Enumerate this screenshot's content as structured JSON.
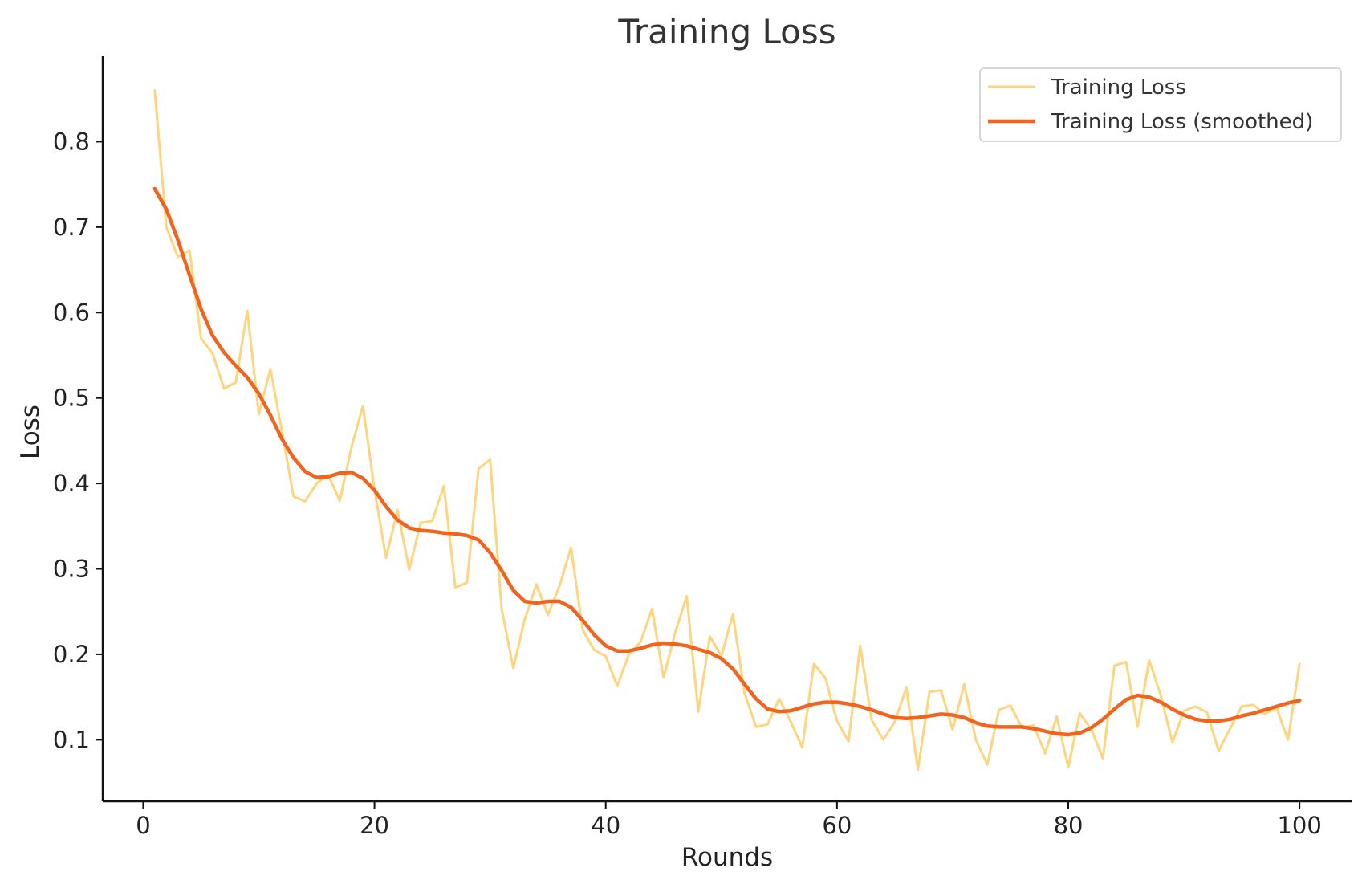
{
  "chart_data": {
    "type": "line",
    "title": "Training Loss",
    "xlabel": "Rounds",
    "ylabel": "Loss",
    "xlim": [
      -3.5,
      104.5
    ],
    "ylim": [
      0.028,
      0.9
    ],
    "x_ticks": [
      "0",
      "20",
      "40",
      "60",
      "80",
      "100"
    ],
    "y_ticks": [
      "0.1",
      "0.2",
      "0.3",
      "0.4",
      "0.5",
      "0.6",
      "0.7",
      "0.8"
    ],
    "grid": false,
    "legend_position": "top-right",
    "x": [
      1,
      2,
      3,
      4,
      5,
      6,
      7,
      8,
      9,
      10,
      11,
      12,
      13,
      14,
      15,
      16,
      17,
      18,
      19,
      20,
      21,
      22,
      23,
      24,
      25,
      26,
      27,
      28,
      29,
      30,
      31,
      32,
      33,
      34,
      35,
      36,
      37,
      38,
      39,
      40,
      41,
      42,
      43,
      44,
      45,
      46,
      47,
      48,
      49,
      50,
      51,
      52,
      53,
      54,
      55,
      56,
      57,
      58,
      59,
      60,
      61,
      62,
      63,
      64,
      65,
      66,
      67,
      68,
      69,
      70,
      71,
      72,
      73,
      74,
      75,
      76,
      77,
      78,
      79,
      80,
      81,
      82,
      83,
      84,
      85,
      86,
      87,
      88,
      89,
      90,
      91,
      92,
      93,
      94,
      95,
      96,
      97,
      98,
      99,
      100
    ],
    "series": [
      {
        "name": "Training Loss",
        "color": "#fed57e",
        "values": [
          0.86,
          0.7,
          0.665,
          0.673,
          0.57,
          0.552,
          0.511,
          0.518,
          0.602,
          0.481,
          0.534,
          0.461,
          0.385,
          0.379,
          0.4,
          0.41,
          0.38,
          0.442,
          0.491,
          0.393,
          0.313,
          0.369,
          0.299,
          0.354,
          0.356,
          0.397,
          0.278,
          0.284,
          0.417,
          0.428,
          0.253,
          0.184,
          0.241,
          0.282,
          0.246,
          0.28,
          0.325,
          0.229,
          0.205,
          0.198,
          0.163,
          0.2,
          0.214,
          0.253,
          0.173,
          0.225,
          0.268,
          0.133,
          0.221,
          0.198,
          0.247,
          0.155,
          0.115,
          0.118,
          0.148,
          0.121,
          0.091,
          0.189,
          0.172,
          0.122,
          0.098,
          0.21,
          0.123,
          0.1,
          0.121,
          0.161,
          0.065,
          0.156,
          0.158,
          0.112,
          0.165,
          0.1,
          0.071,
          0.135,
          0.14,
          0.114,
          0.117,
          0.084,
          0.127,
          0.068,
          0.131,
          0.112,
          0.078,
          0.187,
          0.191,
          0.115,
          0.193,
          0.152,
          0.097,
          0.134,
          0.139,
          0.132,
          0.087,
          0.113,
          0.139,
          0.141,
          0.13,
          0.138,
          0.1,
          0.189
        ]
      },
      {
        "name": "Training Loss (smoothed)",
        "color": "#f0641e",
        "values": [
          0.745,
          0.721,
          0.685,
          0.644,
          0.604,
          0.573,
          0.553,
          0.538,
          0.524,
          0.505,
          0.48,
          0.452,
          0.43,
          0.414,
          0.407,
          0.408,
          0.412,
          0.413,
          0.406,
          0.392,
          0.373,
          0.357,
          0.348,
          0.345,
          0.344,
          0.342,
          0.341,
          0.339,
          0.334,
          0.319,
          0.298,
          0.275,
          0.262,
          0.26,
          0.262,
          0.262,
          0.255,
          0.24,
          0.223,
          0.21,
          0.204,
          0.204,
          0.207,
          0.211,
          0.213,
          0.212,
          0.21,
          0.206,
          0.202,
          0.195,
          0.183,
          0.165,
          0.148,
          0.136,
          0.133,
          0.134,
          0.138,
          0.142,
          0.144,
          0.144,
          0.142,
          0.139,
          0.135,
          0.13,
          0.126,
          0.125,
          0.126,
          0.128,
          0.13,
          0.129,
          0.126,
          0.12,
          0.116,
          0.115,
          0.115,
          0.115,
          0.113,
          0.11,
          0.107,
          0.106,
          0.108,
          0.114,
          0.124,
          0.136,
          0.147,
          0.152,
          0.15,
          0.144,
          0.136,
          0.129,
          0.124,
          0.122,
          0.122,
          0.124,
          0.128,
          0.131,
          0.135,
          0.139,
          0.143,
          0.146
        ]
      }
    ]
  }
}
